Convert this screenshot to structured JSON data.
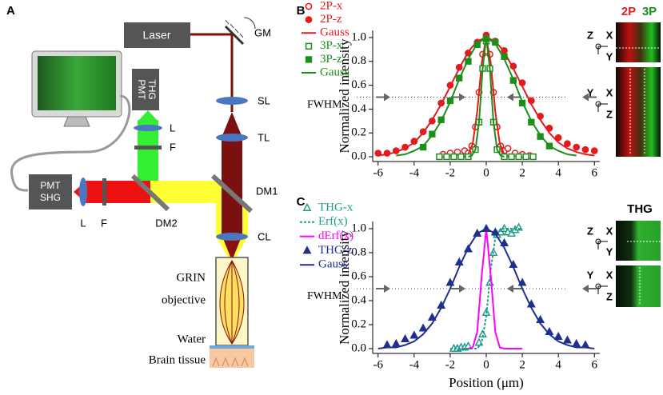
{
  "diagram": {
    "panel_label": "A",
    "laser": "Laser",
    "gm": "GM",
    "pmt_thg": [
      "PMT",
      "THG"
    ],
    "lens_thg": "L",
    "filter_thg": "F",
    "sl": "SL",
    "tl": "TL",
    "dm1": "DM1",
    "pmt_shg": [
      "PMT",
      "SHG"
    ],
    "lens_shg": "L",
    "filter_shg": "F",
    "dm2": "DM2",
    "cl": "CL",
    "objective": [
      "GRIN",
      "objective"
    ],
    "water": "Water",
    "tissue": "Brain tissue"
  },
  "insets": {
    "B": {
      "channels": [
        "2P",
        "3P"
      ],
      "top_axes": [
        "Z",
        "X",
        "Y"
      ],
      "bottom_axes": [
        "Y",
        "X",
        "Z"
      ]
    },
    "C": {
      "title": "THG",
      "top_axes": [
        "Z",
        "X",
        "Y"
      ],
      "bottom_axes": [
        "Y",
        "X",
        "Z"
      ]
    }
  },
  "chart_data": [
    {
      "type": "line",
      "panel_label": "B",
      "ylabel": "Normalized intensity",
      "annotation": "FWHM",
      "xlim": [
        -6.3,
        6.3
      ],
      "ylim": [
        -0.04,
        1.06
      ],
      "xticks": [
        -6,
        -4,
        -2,
        0,
        2,
        4,
        6
      ],
      "yticks": [
        {
          "value": 0,
          "label": "0.0"
        },
        0.2,
        0.4,
        0.6,
        0.8,
        {
          "value": 1,
          "label": "1.0"
        }
      ],
      "series": [
        {
          "name": "2P-x",
          "color": "#e41a1c",
          "mode": "markers",
          "marker": "circle",
          "filled": false,
          "x": [
            -2.4,
            -2.0,
            -1.6,
            -1.2,
            -1.0,
            -0.8,
            -0.6,
            -0.4,
            -0.2,
            0,
            0.2,
            0.4,
            0.6,
            0.8,
            1.0,
            1.2,
            1.6,
            2.0,
            2.4
          ],
          "values": [
            0.02,
            0.03,
            0.04,
            0.05,
            0.03,
            0.09,
            0.25,
            0.54,
            0.86,
            1.0,
            0.86,
            0.54,
            0.25,
            0.09,
            0.05,
            0.07,
            0.03,
            0.02,
            0.01
          ]
        },
        {
          "name": "2P-z",
          "color": "#e41a1c",
          "mode": "markers",
          "marker": "circle",
          "filled": true,
          "x": [
            -6,
            -5.5,
            -5,
            -4.5,
            -4,
            -3.5,
            -3,
            -2.5,
            -2,
            -1.5,
            -1,
            -0.5,
            0,
            0.5,
            1,
            1.5,
            2,
            2.5,
            3,
            3.5,
            4,
            4.5,
            5,
            5.5,
            6
          ],
          "values": [
            0.03,
            0.03,
            0.05,
            0.08,
            0.13,
            0.21,
            0.3,
            0.45,
            0.6,
            0.75,
            0.87,
            0.96,
            1.02,
            0.97,
            0.89,
            0.76,
            0.62,
            0.47,
            0.34,
            0.24,
            0.16,
            0.11,
            0.08,
            0.06,
            0.05
          ]
        },
        {
          "name": "Gauss",
          "color": "#e41a1c",
          "mode": "line",
          "x": [
            -1.5,
            -1.25,
            -1,
            -0.75,
            -0.5,
            -0.25,
            0,
            0.25,
            0.5,
            0.75,
            1,
            1.25,
            1.5,
            null,
            -6,
            -5.5,
            -5,
            -4.5,
            -4,
            -3.5,
            -3,
            -2.5,
            -2,
            -1.5,
            -1,
            -0.5,
            0,
            0.5,
            1,
            1.5,
            2,
            2.5,
            3,
            3.5,
            4,
            4.5,
            5,
            5.5,
            6
          ],
          "values": [
            0,
            0,
            0.02,
            0.11,
            0.38,
            0.79,
            1,
            0.79,
            0.38,
            0.11,
            0.02,
            0,
            0,
            null,
            0.01,
            0.02,
            0.04,
            0.07,
            0.12,
            0.2,
            0.31,
            0.44,
            0.59,
            0.74,
            0.88,
            0.97,
            1,
            0.97,
            0.88,
            0.74,
            0.59,
            0.44,
            0.31,
            0.2,
            0.12,
            0.07,
            0.04,
            0.02,
            0.01
          ]
        },
        {
          "name": "3P-x",
          "color": "#1a8f1a",
          "mode": "markers",
          "marker": "square",
          "filled": false,
          "x": [
            -2.6,
            -2.2,
            -1.8,
            -1.4,
            -1.0,
            -0.6,
            -0.4,
            -0.2,
            0,
            0.2,
            0.4,
            0.6,
            1.0,
            1.4,
            1.8,
            2.2,
            2.6
          ],
          "values": [
            0,
            0,
            0,
            0,
            0,
            0.06,
            0.29,
            0.74,
            0.97,
            0.74,
            0.29,
            0.06,
            0,
            0,
            0,
            0,
            0
          ]
        },
        {
          "name": "3P-z",
          "color": "#1a8f1a",
          "mode": "markers",
          "marker": "square",
          "filled": true,
          "x": [
            -3.5,
            -3,
            -2.5,
            -2,
            -1.5,
            -1,
            -0.5,
            0,
            0.5,
            1,
            1.5,
            2,
            2.5,
            3,
            3.5
          ],
          "values": [
            0.08,
            0.19,
            0.31,
            0.47,
            0.66,
            0.8,
            0.94,
            0.99,
            0.96,
            0.84,
            0.64,
            0.45,
            0.29,
            0.17,
            0.09
          ]
        },
        {
          "name": "Gauss",
          "color": "#1a8f1a",
          "mode": "line",
          "x": [
            -1,
            -0.8,
            -0.6,
            -0.4,
            -0.2,
            0,
            0.2,
            0.4,
            0.6,
            0.8,
            1,
            null,
            -5,
            -4.5,
            -4,
            -3.5,
            -3,
            -2.5,
            -2,
            -1.5,
            -1,
            -0.5,
            0,
            0.5,
            1,
            1.5,
            2,
            2.5,
            3,
            3.5,
            4,
            4.5,
            5
          ],
          "values": [
            0,
            0.01,
            0.06,
            0.29,
            0.74,
            1,
            0.74,
            0.29,
            0.06,
            0.01,
            0,
            null,
            0.01,
            0.02,
            0.05,
            0.09,
            0.18,
            0.3,
            0.46,
            0.65,
            0.82,
            0.95,
            1,
            0.95,
            0.82,
            0.65,
            0.46,
            0.3,
            0.18,
            0.09,
            0.05,
            0.02,
            0.01
          ]
        }
      ]
    },
    {
      "type": "line",
      "panel_label": "C",
      "ylabel": "Normalized intensity",
      "xlabel": "Position (μm)",
      "annotation": "FWHM",
      "xlim": [
        -6.3,
        6.3
      ],
      "ylim": [
        -0.04,
        1.06
      ],
      "xticks": [
        -6,
        -4,
        -2,
        0,
        2,
        4,
        6
      ],
      "yticks": [
        {
          "value": 0,
          "label": "0.0"
        },
        0.2,
        0.4,
        0.6,
        0.8,
        {
          "value": 1,
          "label": "1.0"
        }
      ],
      "series": [
        {
          "name": "THG-x",
          "color": "#239b8c",
          "mode": "markers",
          "marker": "triangle",
          "filled": false,
          "x": [
            -1.8,
            -1.6,
            -1.4,
            -1.2,
            -1.0,
            -0.4,
            -0.2,
            0,
            0.2,
            0.4,
            0.6,
            0.8,
            1.0,
            1.2,
            1.4,
            1.6,
            1.8
          ],
          "values": [
            0,
            0,
            0.01,
            0.01,
            0.02,
            0.05,
            0.12,
            0.3,
            0.55,
            0.8,
            0.95,
            0.97,
            1.0,
            0.97,
            0.96,
            0.99,
            1.01
          ]
        },
        {
          "name": "Erf(x)",
          "color": "#239b8c",
          "mode": "line",
          "dash": true,
          "x": [
            -2,
            -1.75,
            -1.5,
            -1.25,
            -1,
            -0.75,
            -0.5,
            -0.25,
            0,
            0.25,
            0.5,
            0.75,
            1,
            1.25,
            1.5,
            1.75,
            2
          ],
          "values": [
            0,
            0,
            0,
            0,
            0,
            0,
            0,
            0.05,
            0.27,
            0.66,
            0.92,
            0.99,
            1,
            1,
            1,
            1,
            1
          ]
        },
        {
          "name": "dErf(x)",
          "color": "#ff00ff",
          "mode": "line",
          "x": [
            -1,
            -0.75,
            -0.5,
            -0.25,
            0,
            0.25,
            0.5,
            0.75,
            1,
            1.5,
            2
          ],
          "values": [
            0,
            0.01,
            0.14,
            0.61,
            1,
            0.61,
            0.14,
            0.01,
            0,
            0,
            0
          ]
        },
        {
          "name": "THG-z",
          "color": "#1f2f8f",
          "mode": "markers",
          "marker": "triangle",
          "filled": true,
          "x": [
            -5.5,
            -5,
            -4.5,
            -4,
            -3.5,
            -3,
            -2.5,
            -2,
            -1.5,
            -1,
            -0.5,
            0,
            0.5,
            1,
            1.5,
            2,
            2.5,
            3,
            3.5,
            4,
            4.5,
            5,
            5.5
          ],
          "values": [
            0.03,
            0.04,
            0.08,
            0.11,
            0.17,
            0.26,
            0.36,
            0.55,
            0.72,
            0.83,
            0.96,
            1.0,
            0.97,
            0.88,
            0.7,
            0.55,
            0.37,
            0.24,
            0.14,
            0.1,
            0.07,
            0.04,
            0.03
          ]
        },
        {
          "name": "Gauss",
          "color": "#1f2f8f",
          "mode": "line",
          "x": [
            -6,
            -5.5,
            -5,
            -4.5,
            -4,
            -3.5,
            -3,
            -2.5,
            -2,
            -1.5,
            -1,
            -0.5,
            0,
            0.5,
            1,
            1.5,
            2,
            2.5,
            3,
            3.5,
            4,
            4.5,
            5,
            5.5,
            6
          ],
          "values": [
            0,
            0.01,
            0.01,
            0.03,
            0.06,
            0.12,
            0.21,
            0.34,
            0.5,
            0.68,
            0.84,
            0.96,
            1,
            0.96,
            0.84,
            0.68,
            0.5,
            0.34,
            0.21,
            0.12,
            0.06,
            0.03,
            0.01,
            0.01,
            0
          ]
        }
      ]
    }
  ]
}
